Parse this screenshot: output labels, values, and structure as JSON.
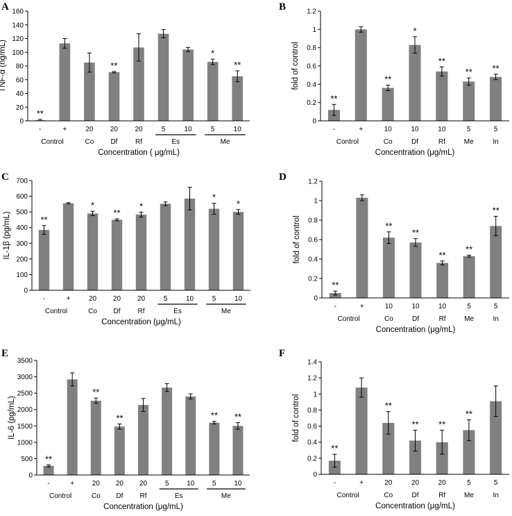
{
  "chart_data": [
    {
      "type": "bar",
      "panel": "A",
      "categories": [
        "-",
        "+",
        "20",
        "20",
        "20",
        "5",
        "10",
        "5",
        "10"
      ],
      "values": [
        1,
        113,
        85,
        71,
        107,
        127,
        104,
        86,
        65
      ],
      "errors": [
        1,
        7,
        14,
        1,
        20,
        6,
        3,
        4,
        8
      ],
      "significance": [
        "**",
        "",
        "",
        "**",
        "",
        "",
        "",
        "*",
        "**"
      ],
      "ylim": [
        0,
        160
      ],
      "yticks": [
        0,
        20,
        40,
        60,
        80,
        100,
        120,
        140,
        160
      ],
      "ylabel": "TNF-α (ng/mL)",
      "xlabel": "Concentration ( μg/mL)",
      "groups": [
        {
          "label": "Control",
          "from": 0,
          "to": 1,
          "line": false
        },
        {
          "label": "Co",
          "from": 2,
          "to": 2,
          "line": false
        },
        {
          "label": "Df",
          "from": 3,
          "to": 3,
          "line": false
        },
        {
          "label": "Rf",
          "from": 4,
          "to": 4,
          "line": false
        },
        {
          "label": "Es",
          "from": 5,
          "to": 6,
          "line": true
        },
        {
          "label": "Me",
          "from": 7,
          "to": 8,
          "line": true
        }
      ]
    },
    {
      "type": "bar",
      "panel": "B",
      "categories": [
        "-",
        "+",
        "10",
        "10",
        "10",
        "5",
        "5"
      ],
      "values": [
        0.12,
        1.0,
        0.36,
        0.83,
        0.54,
        0.43,
        0.48
      ],
      "errors": [
        0.06,
        0.03,
        0.03,
        0.09,
        0.05,
        0.04,
        0.03
      ],
      "significance": [
        "**",
        "",
        "**",
        "*",
        "**",
        "**",
        "**"
      ],
      "ylim": [
        0,
        1.2
      ],
      "yticks": [
        0,
        0.2,
        0.4,
        0.6,
        0.8,
        1,
        1.2
      ],
      "ylabel": "fold of control",
      "xlabel": "Concentration (μg/mL)",
      "groups": [
        {
          "label": "Control",
          "from": 0,
          "to": 1,
          "line": false
        },
        {
          "label": "Co",
          "from": 2,
          "to": 2,
          "line": false
        },
        {
          "label": "Df",
          "from": 3,
          "to": 3,
          "line": false
        },
        {
          "label": "Rf",
          "from": 4,
          "to": 4,
          "line": false
        },
        {
          "label": "Me",
          "from": 5,
          "to": 5,
          "line": false
        },
        {
          "label": "In",
          "from": 6,
          "to": 6,
          "line": false
        }
      ]
    },
    {
      "type": "bar",
      "panel": "C",
      "categories": [
        "-",
        "+",
        "20",
        "20",
        "20",
        "5",
        "10",
        "5",
        "10"
      ],
      "values": [
        385,
        555,
        490,
        450,
        483,
        552,
        585,
        520,
        500
      ],
      "errors": [
        28,
        4,
        14,
        6,
        16,
        12,
        72,
        35,
        15
      ],
      "significance": [
        "**",
        "",
        "*",
        "**",
        "*",
        "",
        "",
        "*",
        "*"
      ],
      "ylim": [
        0,
        700
      ],
      "yticks": [
        0,
        100,
        200,
        300,
        400,
        500,
        600,
        700
      ],
      "ylabel": "IL-1β (pg/mL)",
      "xlabel": "Concentration (μg/mL)",
      "groups": [
        {
          "label": "Control",
          "from": 0,
          "to": 1,
          "line": false
        },
        {
          "label": "Co",
          "from": 2,
          "to": 2,
          "line": false
        },
        {
          "label": "Df",
          "from": 3,
          "to": 3,
          "line": false
        },
        {
          "label": "Rf",
          "from": 4,
          "to": 4,
          "line": false
        },
        {
          "label": "Es",
          "from": 5,
          "to": 6,
          "line": true
        },
        {
          "label": "Me",
          "from": 7,
          "to": 8,
          "line": true
        }
      ]
    },
    {
      "type": "bar",
      "panel": "D",
      "categories": [
        "-",
        "+",
        "10",
        "10",
        "10",
        "5",
        "5"
      ],
      "values": [
        0.05,
        1.03,
        0.62,
        0.57,
        0.36,
        0.43,
        0.74
      ],
      "errors": [
        0.02,
        0.03,
        0.06,
        0.04,
        0.02,
        0.01,
        0.1
      ],
      "significance": [
        "**",
        "",
        "**",
        "**",
        "**",
        "**",
        "**"
      ],
      "ylim": [
        0,
        1.2
      ],
      "yticks": [
        0,
        0.2,
        0.4,
        0.6,
        0.8,
        1,
        1.2
      ],
      "ylabel": "fold of control",
      "xlabel": "Concentration (μg/mL)",
      "groups": [
        {
          "label": "Control",
          "from": 0,
          "to": 1,
          "line": false
        },
        {
          "label": "Co",
          "from": 2,
          "to": 2,
          "line": false
        },
        {
          "label": "Df",
          "from": 3,
          "to": 3,
          "line": false
        },
        {
          "label": "Rf",
          "from": 4,
          "to": 4,
          "line": false
        },
        {
          "label": "Me",
          "from": 5,
          "to": 5,
          "line": false
        },
        {
          "label": "In",
          "from": 6,
          "to": 6,
          "line": false
        }
      ]
    },
    {
      "type": "bar",
      "panel": "E",
      "categories": [
        "-",
        "+",
        "20",
        "20",
        "20",
        "5",
        "10",
        "5",
        "10"
      ],
      "values": [
        280,
        2920,
        2270,
        1480,
        2140,
        2670,
        2400,
        1600,
        1500
      ],
      "errors": [
        30,
        200,
        80,
        80,
        200,
        120,
        80,
        40,
        100
      ],
      "significance": [
        "**",
        "",
        "**",
        "**",
        "",
        "",
        "",
        "**",
        "**"
      ],
      "ylim": [
        0,
        3500
      ],
      "yticks": [
        0,
        500,
        1000,
        1500,
        2000,
        2500,
        3000,
        3500
      ],
      "ylabel": "IL-6 (pg/mL)",
      "xlabel": "Concentration (μg/mL)",
      "groups": [
        {
          "label": "Control",
          "from": 0,
          "to": 1,
          "line": false
        },
        {
          "label": "Co",
          "from": 2,
          "to": 2,
          "line": false
        },
        {
          "label": "Df",
          "from": 3,
          "to": 3,
          "line": false
        },
        {
          "label": "Rf",
          "from": 4,
          "to": 4,
          "line": false
        },
        {
          "label": "Es",
          "from": 5,
          "to": 6,
          "line": true
        },
        {
          "label": "Me",
          "from": 7,
          "to": 8,
          "line": true
        }
      ]
    },
    {
      "type": "bar",
      "panel": "F",
      "categories": [
        "-",
        "+",
        "20",
        "20",
        "20",
        "5",
        "5"
      ],
      "values": [
        0.17,
        1.08,
        0.64,
        0.42,
        0.4,
        0.55,
        0.91
      ],
      "errors": [
        0.08,
        0.12,
        0.14,
        0.13,
        0.15,
        0.13,
        0.19
      ],
      "significance": [
        "**",
        "",
        "**",
        "**",
        "**",
        "**",
        ""
      ],
      "ylim": [
        0,
        1.4
      ],
      "yticks": [
        0,
        0.2,
        0.4,
        0.6,
        0.8,
        1,
        1.2,
        1.4
      ],
      "ylabel": "fold of control",
      "xlabel": "Concentration (μg/mL)",
      "groups": [
        {
          "label": "Control",
          "from": 0,
          "to": 1,
          "line": false
        },
        {
          "label": "Co",
          "from": 2,
          "to": 2,
          "line": false
        },
        {
          "label": "Df",
          "from": 3,
          "to": 3,
          "line": false
        },
        {
          "label": "Rf",
          "from": 4,
          "to": 4,
          "line": false
        },
        {
          "label": "Me",
          "from": 5,
          "to": 5,
          "line": false
        },
        {
          "label": "In",
          "from": 6,
          "to": 6,
          "line": false
        }
      ]
    }
  ],
  "colors": {
    "bar": "#808080",
    "axis": "#000000",
    "text": "#000000"
  }
}
